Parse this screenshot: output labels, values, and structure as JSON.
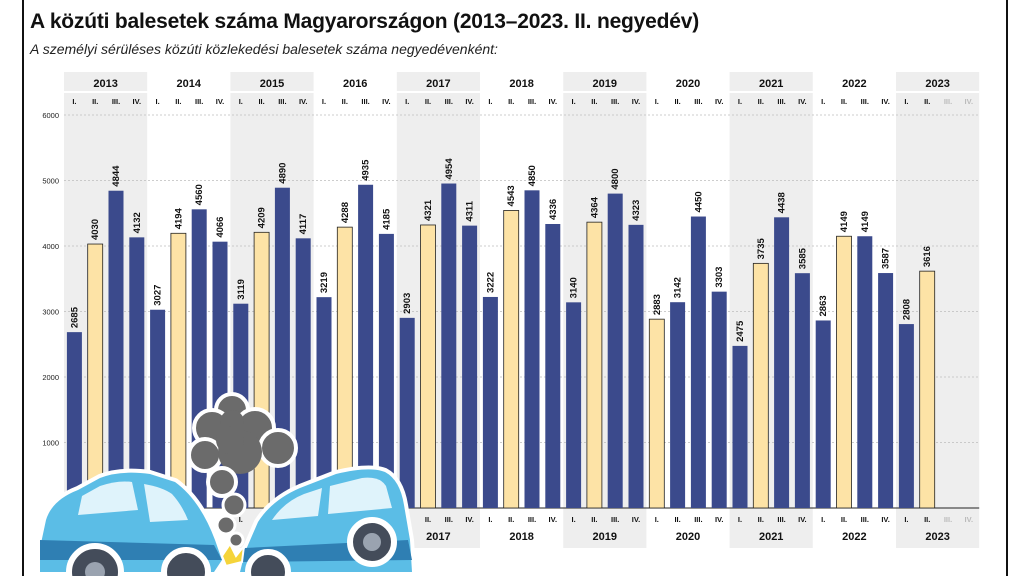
{
  "title": "A közúti balesetek száma Magyarországon (2013–2023. II. negyedév)",
  "subtitle": "A személyi sérüléses közúti közlekedési balesetek száma negyedévenként:",
  "colors": {
    "bar_dark": "#3b4a8c",
    "bar_light": "#fde3a6",
    "band": "#eeeeee",
    "grid": "#bdbdbd",
    "text": "#111111"
  },
  "chart_data": {
    "type": "bar",
    "quarters": [
      "I.",
      "II.",
      "III.",
      "IV."
    ],
    "years": [
      "2013",
      "2014",
      "2015",
      "2016",
      "2017",
      "2018",
      "2019",
      "2020",
      "2021",
      "2022",
      "2023"
    ],
    "yticks": [
      1000,
      2000,
      3000,
      4000,
      5000,
      6000
    ],
    "ylim": [
      0,
      6000
    ],
    "values": [
      [
        2685,
        4030,
        4844,
        4132
      ],
      [
        3027,
        4194,
        4560,
        4066
      ],
      [
        3119,
        4209,
        4890,
        4117
      ],
      [
        3219,
        4288,
        4935,
        4185
      ],
      [
        2903,
        4321,
        4954,
        4311
      ],
      [
        3222,
        4543,
        4850,
        4336
      ],
      [
        3140,
        4364,
        4800,
        4323
      ],
      [
        2883,
        3142,
        4450,
        3303
      ],
      [
        2475,
        3735,
        4438,
        3585
      ],
      [
        2863,
        4149,
        4149,
        3587
      ],
      [
        2808,
        3616,
        null,
        null
      ]
    ],
    "highlight": [
      [
        false,
        true,
        false,
        false
      ],
      [
        false,
        true,
        false,
        false
      ],
      [
        false,
        true,
        false,
        false
      ],
      [
        false,
        true,
        false,
        false
      ],
      [
        false,
        true,
        false,
        false
      ],
      [
        false,
        true,
        false,
        false
      ],
      [
        false,
        true,
        false,
        false
      ],
      [
        true,
        false,
        false,
        false
      ],
      [
        false,
        true,
        false,
        false
      ],
      [
        false,
        true,
        false,
        false
      ],
      [
        false,
        true,
        false,
        false
      ]
    ],
    "bottom_years": [
      "2017",
      "2018",
      "2019",
      "2020",
      "2021",
      "2022",
      "2023"
    ]
  },
  "illustration": {
    "icon": "car-crash-icon"
  }
}
